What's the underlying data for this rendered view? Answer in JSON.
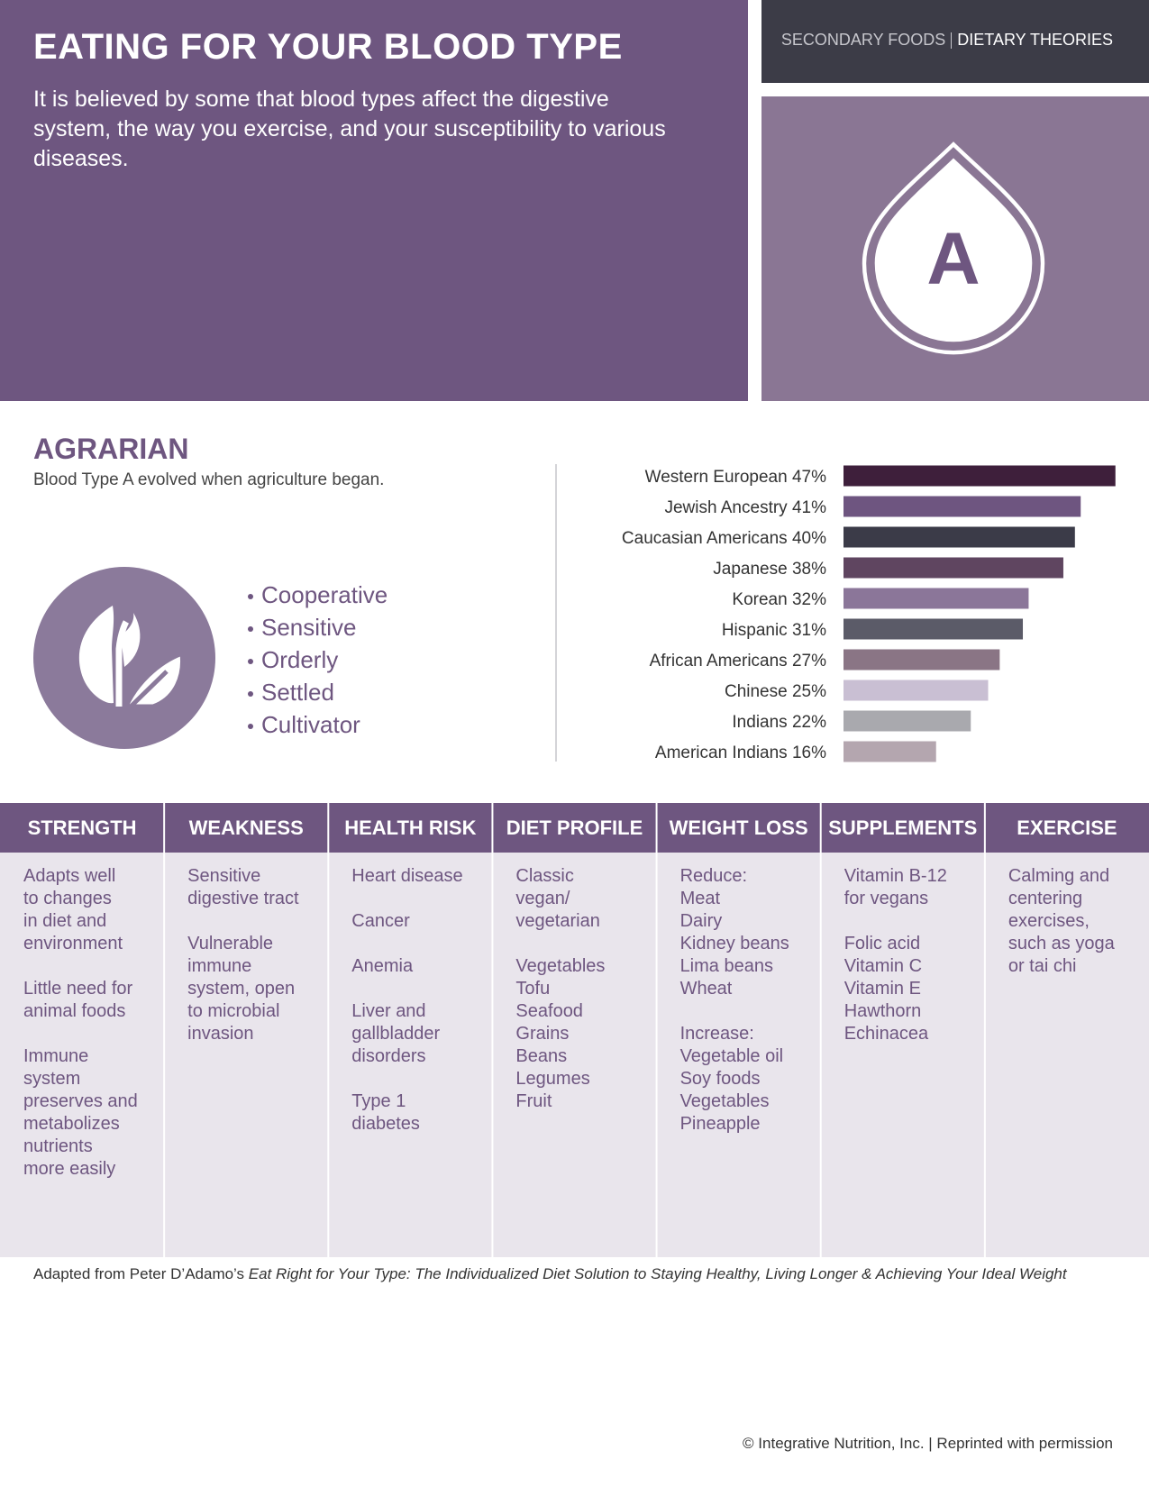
{
  "header": {
    "title": "EATING FOR YOUR BLOOD TYPE",
    "subtitle": "It is believed by some that blood types affect the digestive system, the way you exercise, and your susceptibility to various diseases.",
    "nav": [
      "SECONDARY FOODS",
      "DIETARY THEORIES"
    ]
  },
  "badge": {
    "letter": "A"
  },
  "section": {
    "title": "AGRARIAN",
    "text": "Blood Type A evolved when agriculture began.",
    "traits": [
      "Cooperative",
      "Sensitive",
      "Orderly",
      "Settled",
      "Cultivator"
    ]
  },
  "chart_data": {
    "type": "bar",
    "orientation": "horizontal",
    "categories": [
      "Western European",
      "Jewish Ancestry",
      "Caucasian Americans",
      "Japanese",
      "Korean",
      "Hispanic",
      "African Americans",
      "Chinese",
      "Indians",
      "American Indians"
    ],
    "values": [
      47,
      41,
      40,
      38,
      32,
      31,
      27,
      25,
      22,
      16
    ],
    "value_labels": [
      "47%",
      "41%",
      "40%",
      "38%",
      "32%",
      "31%",
      "27%",
      "25%",
      "22%",
      "16%"
    ],
    "colors": [
      "#3e1f3b",
      "#6e5580",
      "#3b3b48",
      "#5f4560",
      "#8b7699",
      "#5b5b68",
      "#8a7585",
      "#c9bfd3",
      "#a9a9ae",
      "#b4a6af"
    ]
  },
  "table": {
    "columns": [
      {
        "header": "STRENGTH",
        "blocks": [
          [
            "Adapts well",
            "to changes",
            "in diet and",
            "environment"
          ],
          [
            "Little need for",
            "animal foods"
          ],
          [
            "Immune",
            "system",
            "preserves and",
            "metabolizes",
            "nutrients",
            "more easily"
          ]
        ]
      },
      {
        "header": "WEAKNESS",
        "blocks": [
          [
            "Sensitive",
            "digestive tract"
          ],
          [
            "Vulnerable",
            "immune",
            "system, open",
            "to microbial",
            "invasion"
          ]
        ]
      },
      {
        "header": "HEALTH RISK",
        "blocks": [
          [
            "Heart disease"
          ],
          [
            "Cancer"
          ],
          [
            "Anemia"
          ],
          [
            "Liver and",
            "gallbladder",
            "disorders"
          ],
          [
            "Type 1",
            "diabetes"
          ]
        ]
      },
      {
        "header": "DIET PROFILE",
        "blocks": [
          [
            "Classic",
            "vegan/",
            "vegetarian"
          ],
          [
            "Vegetables",
            "Tofu",
            "Seafood",
            "Grains",
            "Beans",
            "Legumes",
            "Fruit"
          ]
        ]
      },
      {
        "header": "WEIGHT LOSS",
        "blocks": [
          [
            "Reduce:",
            "Meat",
            "Dairy",
            "Kidney beans",
            "Lima beans",
            "Wheat"
          ],
          [
            "Increase:",
            "Vegetable oil",
            "Soy foods",
            "Vegetables",
            "Pineapple"
          ]
        ]
      },
      {
        "header": "SUPPLEMENTS",
        "blocks": [
          [
            "Vitamin B-12",
            "for vegans"
          ],
          [
            "Folic acid",
            "Vitamin C",
            "Vitamin E",
            "Hawthorn",
            "Echinacea"
          ]
        ]
      },
      {
        "header": "EXERCISE",
        "blocks": [
          [
            "Calming and",
            "centering",
            "exercises,",
            "such as yoga",
            "or tai chi"
          ]
        ]
      }
    ]
  },
  "footer": {
    "source_prefix": "Adapted from Peter D’Adamo’s",
    "source_title": "Eat Right for Your Type: The Individualized Diet Solution to Staying Healthy, Living Longer & Achieving Your Ideal Weight",
    "copyright": "© Integrative Nutrition, Inc. | Reprinted with permission"
  }
}
